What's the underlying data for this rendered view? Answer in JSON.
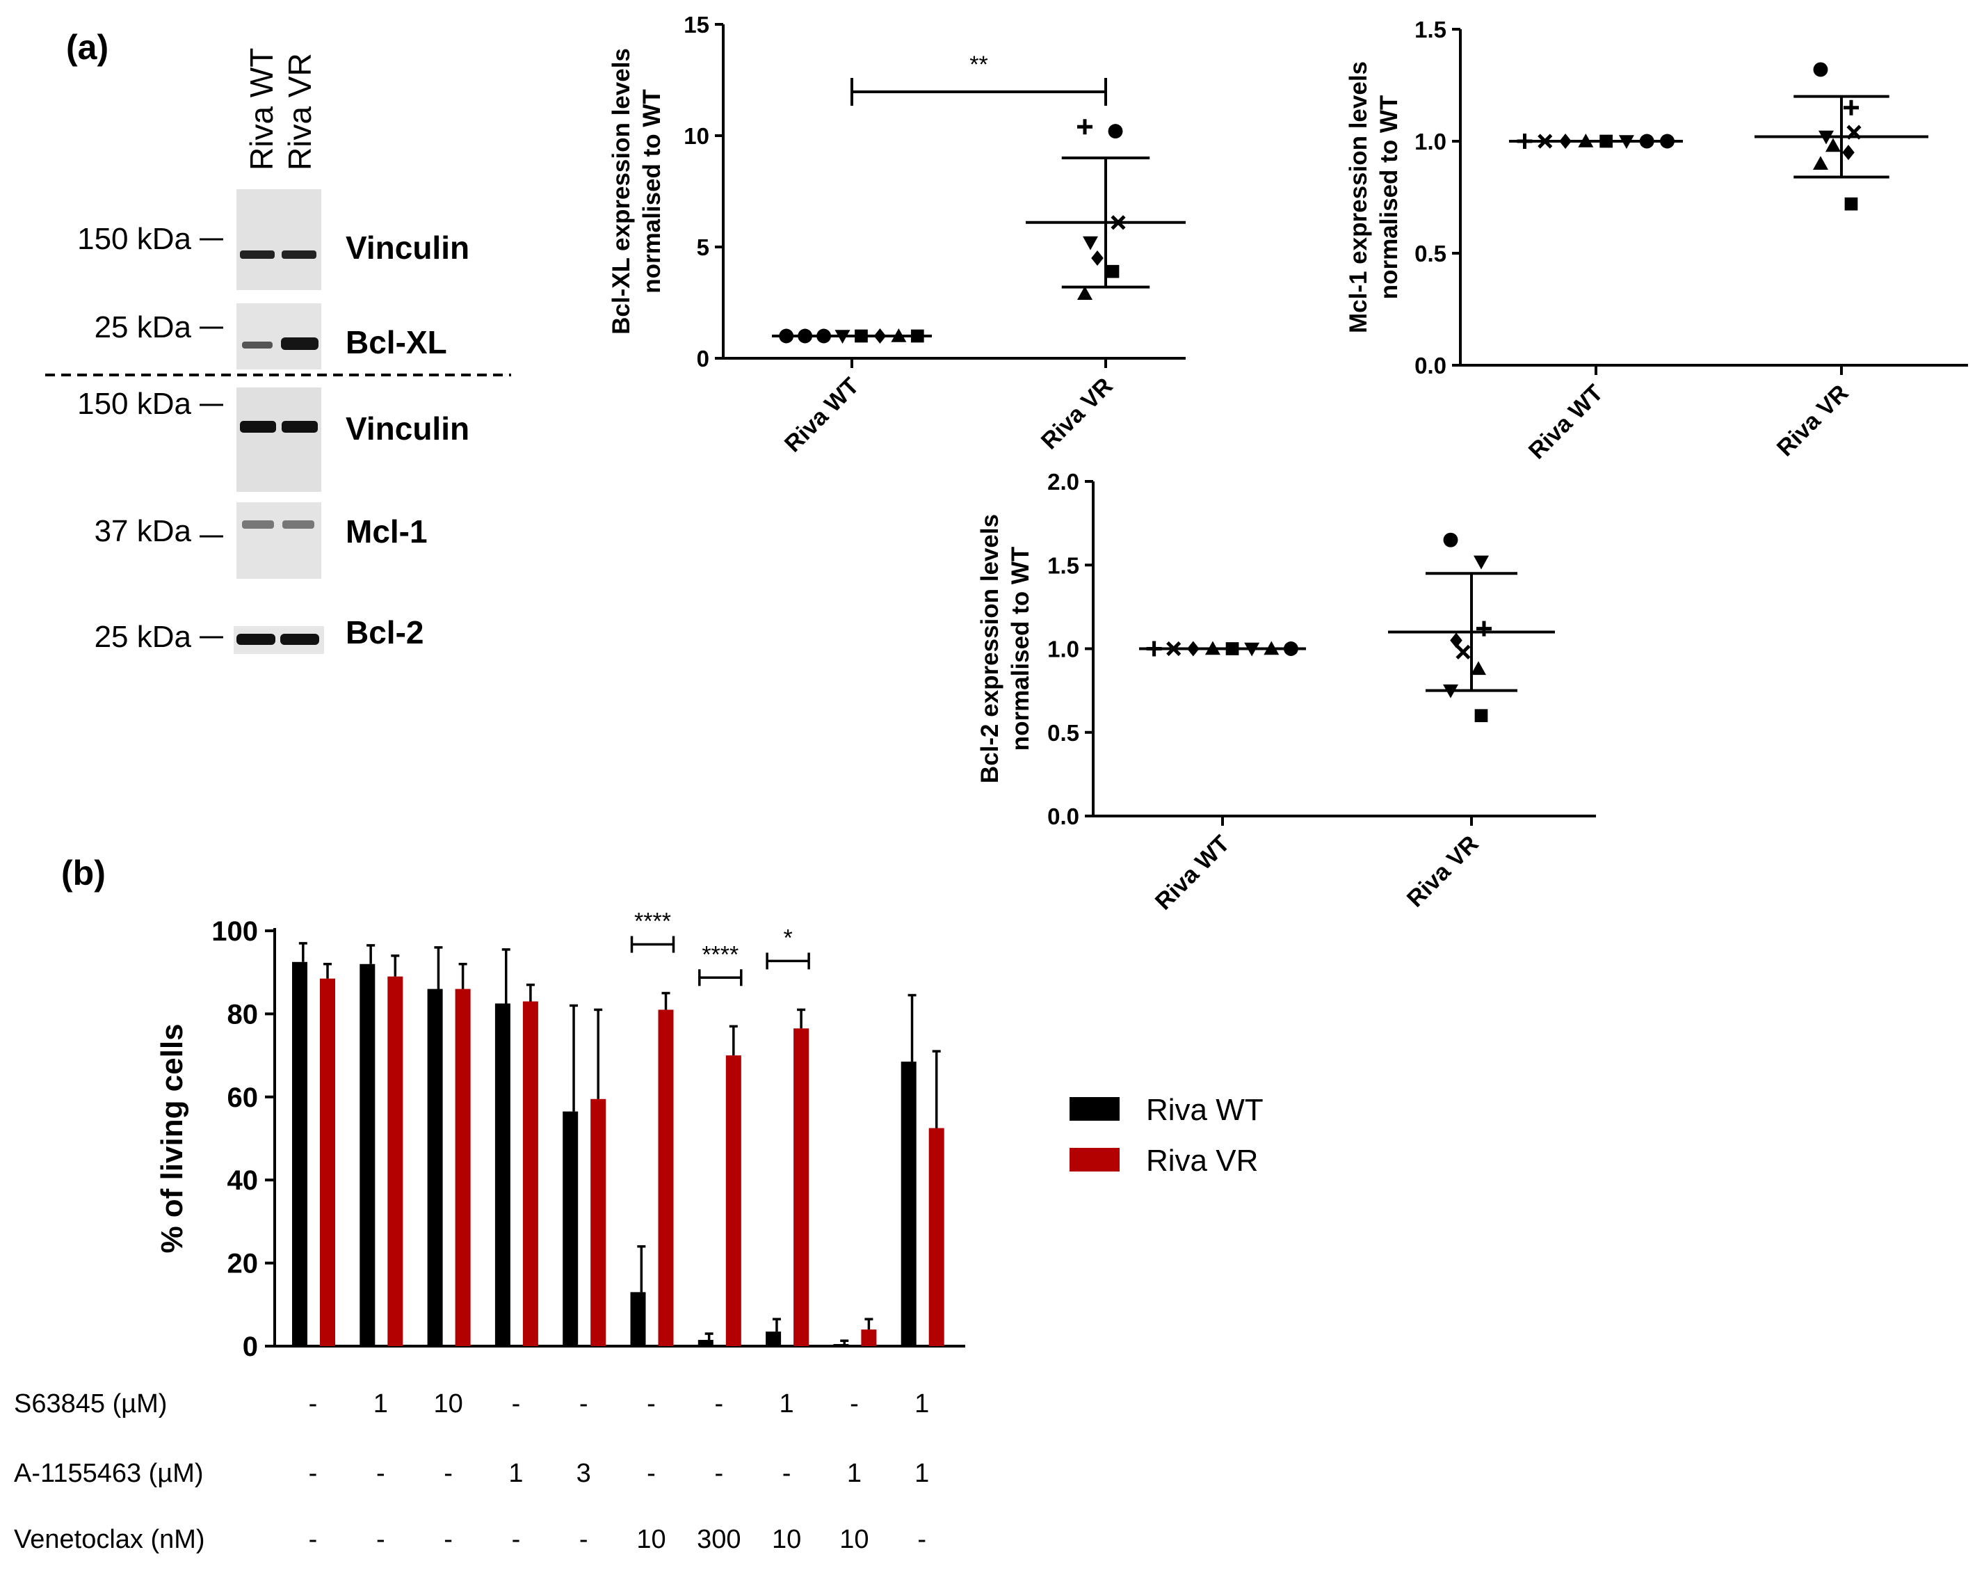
{
  "panel_a": {
    "label": "(a)",
    "lanes": [
      "Riva WT",
      "Riva VR"
    ],
    "blots": [
      {
        "kda": "150 kDa",
        "protein": "Vinculin"
      },
      {
        "kda": "25 kDa",
        "protein": "Bcl-XL"
      },
      {
        "kda": "150 kDa",
        "protein": "Vinculin"
      },
      {
        "kda": "37 kDa",
        "protein": "Mcl-1"
      },
      {
        "kda": "25 kDa",
        "protein": "Bcl-2"
      }
    ]
  },
  "panel_b": {
    "label": "(b)",
    "treatments": [
      {
        "name": "S63845 (µM)",
        "values": [
          "-",
          "1",
          "10",
          "-",
          "-",
          "-",
          "-",
          "1",
          "-",
          "1"
        ]
      },
      {
        "name": "A-1155463 (µM)",
        "values": [
          "-",
          "-",
          "-",
          "1",
          "3",
          "-",
          "-",
          "-",
          "1",
          "1"
        ]
      },
      {
        "name": "Venetoclax (nM)",
        "values": [
          "-",
          "-",
          "-",
          "-",
          "-",
          "10",
          "300",
          "10",
          "10",
          "-"
        ]
      }
    ]
  },
  "colors": {
    "wt": "#000000",
    "vr": "#b30000"
  },
  "chart_data": [
    {
      "id": "bclxl",
      "type": "scatter",
      "ylabel_line1": "Bcl-XL expression levels",
      "ylabel_line2": "normalised to WT",
      "categories": [
        "Riva WT",
        "Riva VR"
      ],
      "ylim": [
        0,
        15
      ],
      "ticks": [
        0,
        5,
        10,
        15
      ],
      "tick_labels": [
        "0",
        "5",
        "10",
        "15"
      ],
      "series": [
        {
          "name": "Riva WT",
          "mean": 1.0,
          "sd": 0.0,
          "points": [
            1,
            1,
            1,
            1,
            1,
            1,
            1,
            1
          ],
          "markers": [
            "circle",
            "circle",
            "circle",
            "triangle-down",
            "square",
            "diamond",
            "triangle",
            "square"
          ]
        },
        {
          "name": "Riva VR",
          "mean": 6.1,
          "sd": 2.9,
          "points": [
            10.4,
            10.2,
            6.1,
            5.2,
            4.5,
            3.9,
            2.9
          ],
          "markers": [
            "plus",
            "circle",
            "x",
            "triangle-down",
            "diamond",
            "square",
            "triangle"
          ]
        }
      ],
      "significance": {
        "text": "**"
      }
    },
    {
      "id": "mcl1",
      "type": "scatter",
      "ylabel_line1": "Mcl-1 expression levels",
      "ylabel_line2": "normalised to WT",
      "categories": [
        "Riva WT",
        "Riva VR"
      ],
      "ylim": [
        0,
        1.5
      ],
      "ticks": [
        0,
        0.5,
        1.0,
        1.5
      ],
      "tick_labels": [
        "0.0",
        "0.5",
        "1.0",
        "1.5"
      ],
      "series": [
        {
          "name": "Riva WT",
          "mean": 1.0,
          "sd": 0.0,
          "points": [
            1,
            1,
            1,
            1,
            1,
            1,
            1,
            1
          ],
          "markers": [
            "plus",
            "x",
            "diamond",
            "triangle",
            "square",
            "triangle-down",
            "circle",
            "circle"
          ]
        },
        {
          "name": "Riva VR",
          "mean": 1.02,
          "sd": 0.18,
          "points": [
            1.32,
            1.15,
            1.04,
            1.02,
            0.98,
            0.95,
            0.9,
            0.72
          ],
          "markers": [
            "circle",
            "plus",
            "x",
            "triangle-down",
            "triangle",
            "diamond",
            "triangle",
            "square"
          ]
        }
      ]
    },
    {
      "id": "bcl2",
      "type": "scatter",
      "ylabel_line1": "Bcl-2 expression levels",
      "ylabel_line2": "normalised to WT",
      "categories": [
        "Riva WT",
        "Riva VR"
      ],
      "ylim": [
        0,
        2.0
      ],
      "ticks": [
        0,
        0.5,
        1.0,
        1.5,
        2.0
      ],
      "tick_labels": [
        "0.0",
        "0.5",
        "1.0",
        "1.5",
        "2.0"
      ],
      "series": [
        {
          "name": "Riva WT",
          "mean": 1.0,
          "sd": 0.0,
          "points": [
            1,
            1,
            1,
            1,
            1,
            1,
            1,
            1
          ],
          "markers": [
            "plus",
            "x",
            "diamond",
            "triangle",
            "square",
            "triangle-down",
            "triangle",
            "circle"
          ]
        },
        {
          "name": "Riva VR",
          "mean": 1.1,
          "sd": 0.35,
          "points": [
            1.65,
            1.52,
            1.12,
            1.05,
            0.98,
            0.88,
            0.75,
            0.6
          ],
          "markers": [
            "circle",
            "triangle-down",
            "plus",
            "diamond",
            "x",
            "triangle",
            "triangle-down",
            "square"
          ]
        }
      ]
    },
    {
      "id": "viability",
      "type": "bar",
      "ylabel": "% of living cells",
      "ylim": [
        0,
        100
      ],
      "ticks": [
        0,
        20,
        40,
        60,
        80,
        100
      ],
      "tick_labels": [
        "0",
        "20",
        "40",
        "60",
        "80",
        "100"
      ],
      "legend": [
        "Riva WT",
        "Riva VR"
      ],
      "legend_position": "right",
      "series": [
        {
          "name": "Riva WT",
          "values": [
            92.5,
            92,
            86,
            82.5,
            56.5,
            13,
            1.5,
            3.5,
            0.5,
            68.5
          ],
          "errors": [
            4.5,
            4.5,
            10,
            13,
            25.5,
            11,
            1.5,
            3,
            0.8,
            16
          ]
        },
        {
          "name": "Riva VR",
          "values": [
            88.5,
            89,
            86,
            83,
            59.5,
            81,
            70,
            76.5,
            4,
            52.5
          ],
          "errors": [
            3.5,
            5,
            6,
            4,
            21.5,
            4,
            7,
            4.5,
            2.5,
            18.5
          ]
        }
      ],
      "significance": [
        {
          "group": 5,
          "text": "****"
        },
        {
          "group": 6,
          "text": "****"
        },
        {
          "group": 7,
          "text": "*"
        }
      ]
    }
  ]
}
